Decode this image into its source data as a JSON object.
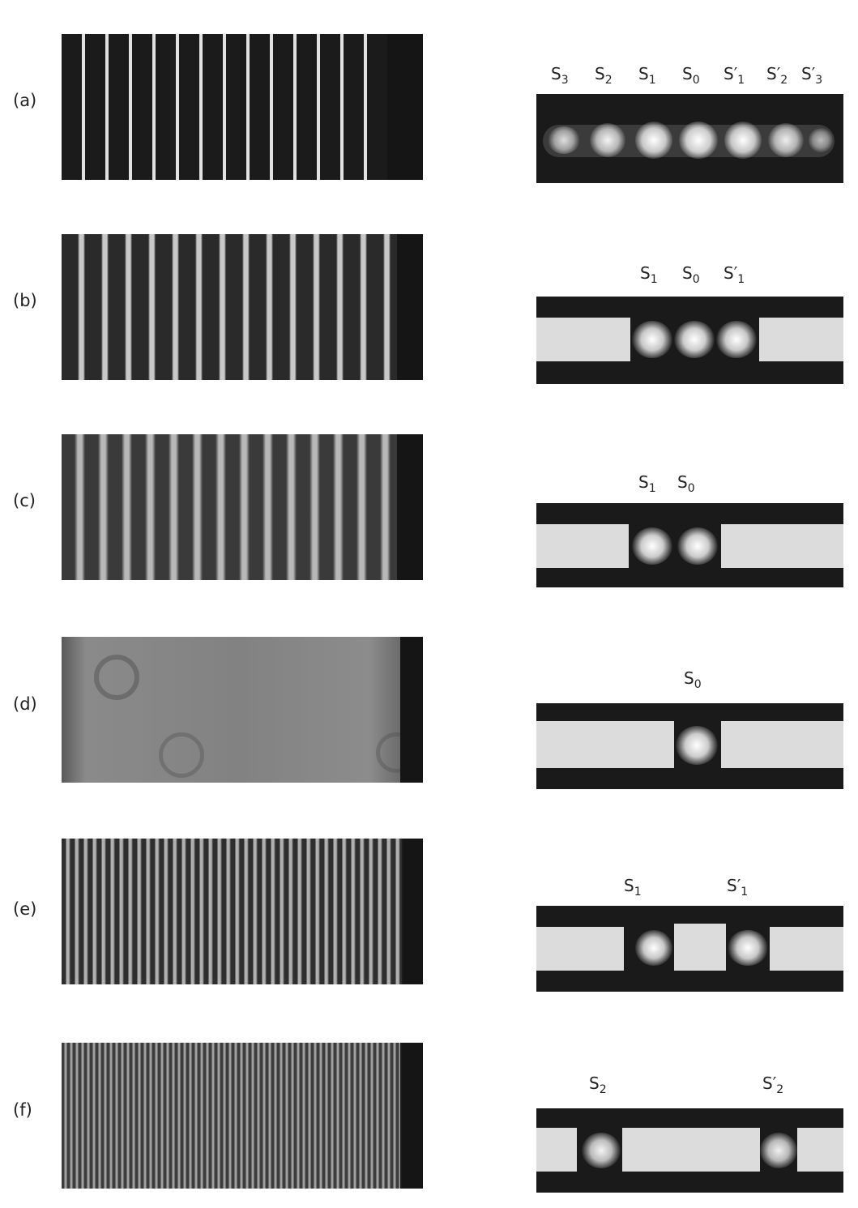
{
  "rows": [
    {
      "label": "(a)",
      "spectral_labels": [
        "S3",
        "S2",
        "S1",
        "S0",
        "S′1",
        "S′2",
        "S′3"
      ],
      "stripe_count": 16
    },
    {
      "label": "(b)",
      "spectral_labels": [
        "S1",
        "S0",
        "S′1"
      ],
      "stripe_count": 16
    },
    {
      "label": "(c)",
      "spectral_labels": [
        "S1",
        "S0"
      ],
      "stripe_count": 16
    },
    {
      "label": "(d)",
      "spectral_labels": [
        "S0"
      ],
      "stripe_count": 0
    },
    {
      "label": "(e)",
      "spectral_labels": [
        "S1",
        "S′1"
      ],
      "stripe_count": 38
    },
    {
      "label": "(f)",
      "spectral_labels": [
        "S2",
        "S′2"
      ],
      "stripe_count": 58
    }
  ],
  "colors": {
    "dark": "#1a1a1a",
    "mask": "#dcdcdc",
    "stripe": "#d9d9d9",
    "spot": "#ffffff"
  }
}
